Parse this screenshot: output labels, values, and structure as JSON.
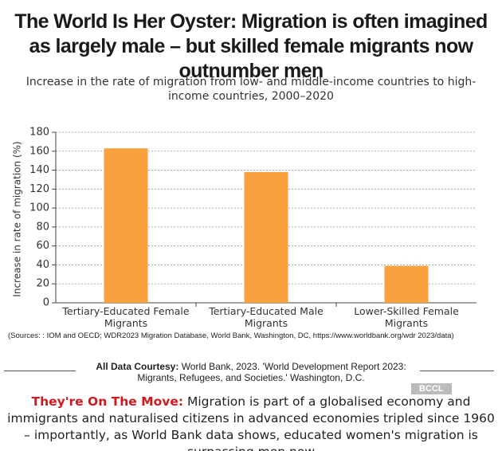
{
  "chart_data": {
    "type": "bar",
    "title": "The World Is Her Oyster: Migration is often imagined as largely male – but skilled female migrants now outnumber men",
    "subtitle": "Increase in the rate of migration from low- and middle-income countries to high-income countries, 2000–2020",
    "y_label": "Increase in rate of migration (%)",
    "categories": [
      "Tertiary-Educated Female Migrants",
      "Tertiary-Educated Male Migrants",
      "Lower-Skilled Female Migrants"
    ],
    "values": [
      163,
      138,
      39
    ],
    "color": "#f9a23d",
    "ylim": [
      0,
      180
    ],
    "yticks": [
      0,
      20,
      40,
      60,
      80,
      100,
      120,
      140,
      160,
      180
    ],
    "grid": true
  },
  "sources": "(Sources: : IOM and OECD; WDR2023 Migration Database, World Bank, Washington, DC, https://www.worldbank.org/wdr 2023/data)",
  "courtesy": {
    "label": "All Data Courtesy:",
    "text": "World Bank, 2023. 'World Development Report 2023: Migrants, Refugees, and Societies.' Washington, D.C."
  },
  "watermark": "BCCL",
  "footer": {
    "lead": "They're On The Move:",
    "text": "Migration is part of a globalised economy and immigrants and naturalised citizens in advanced economies tripled since 1960 – importantly, as World Bank data shows, educated women's migration is surpassing men now"
  }
}
